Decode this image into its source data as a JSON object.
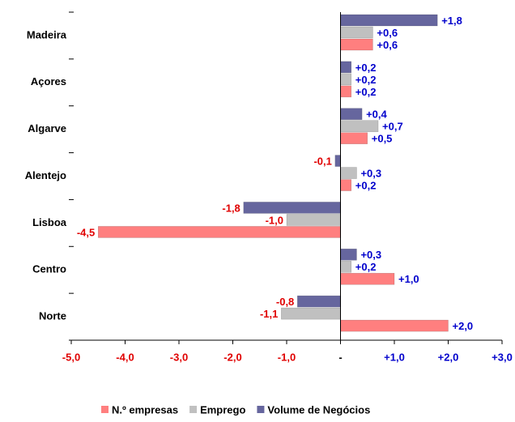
{
  "chart_data": {
    "type": "hbar",
    "categories": [
      "Madeira",
      "Açores",
      "Algarve",
      "Alentejo",
      "Lisboa",
      "Centro",
      "Norte"
    ],
    "series": [
      {
        "name": "Volume de Negócios",
        "color": "#66669e",
        "values": [
          1.8,
          0.2,
          0.4,
          -0.1,
          -1.8,
          0.3,
          -0.8
        ],
        "value_labels": [
          "+1,8",
          "+0,2",
          "+0,4",
          "-0,1",
          "-1,8",
          "+0,3",
          "-0,8"
        ]
      },
      {
        "name": "Emprego",
        "color": "#c0c0c0",
        "values": [
          0.6,
          0.2,
          0.7,
          0.3,
          -1.0,
          0.2,
          -1.1
        ],
        "value_labels": [
          "+0,6",
          "+0,2",
          "+0,7",
          "+0,3",
          "-1,0",
          "+0,2",
          "-1,1"
        ]
      },
      {
        "name": "N.º empresas",
        "color": "#ff7f7f",
        "values": [
          0.6,
          0.2,
          0.5,
          0.2,
          -4.5,
          1.0,
          2.0
        ],
        "value_labels": [
          "+0,6",
          "+0,2",
          "+0,5",
          "+0,2",
          "-4,5",
          "+1,0",
          "+2,0"
        ]
      }
    ],
    "legend_order": [
      2,
      1,
      0
    ],
    "xlim": [
      -5,
      3
    ],
    "xticks": [
      {
        "value": -5,
        "label": "-5,0"
      },
      {
        "value": -4,
        "label": "-4,0"
      },
      {
        "value": -3,
        "label": "-3,0"
      },
      {
        "value": -2,
        "label": "-2,0"
      },
      {
        "value": -1,
        "label": "-1,0"
      },
      {
        "value": 0,
        "label": "-"
      },
      {
        "value": 1,
        "label": "+1,0"
      },
      {
        "value": 2,
        "label": "+2,0"
      },
      {
        "value": 3,
        "label": "+3,0"
      }
    ],
    "positive_label_color": "#0000cc",
    "negative_label_color": "#e00000",
    "legend": "bottom"
  }
}
